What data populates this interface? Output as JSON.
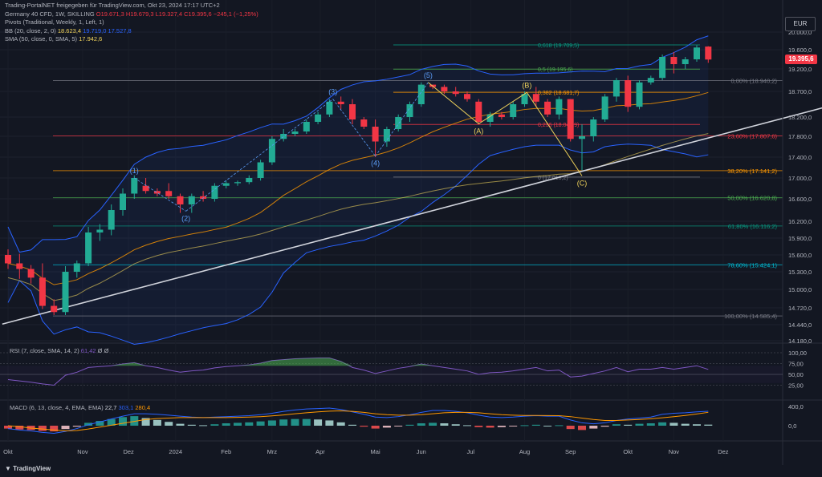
{
  "header": {
    "credit": "Trading-PortalNET freigegeben für TradingView.com, Okt 23, 2024 17:17 UTC+2",
    "symbol_line": "Germany 40 CFD, 1W, SKILLING",
    "ohlc": {
      "o": "O19.671,3",
      "h": "H19.679,3",
      "l": "L19.327,4",
      "c": "C19.395,6",
      "chg": "−245,1 (−1,25%)"
    },
    "pivots": "Pivots (Traditional, Weekly, 1, Left, 1)",
    "bb_label": "BB (20, close, 2, 0)",
    "bb_values": [
      "18.623,4",
      "19.719,0",
      "17.527,8"
    ],
    "sma_label": "SMA (50, close, 0, SMA, 5)",
    "sma_value": "17.942,6"
  },
  "currency": "EUR",
  "last_price": "19.395,6",
  "footer_logo": "TradingView",
  "colors": {
    "up": "#22ab94",
    "down": "#f23645",
    "bb": "#2962ff",
    "sma": "#f0d35b",
    "trend": "#d1d4dc"
  },
  "chart_data": {
    "type": "candlestick",
    "timeframe": "1W",
    "ylim": [
      14180,
      20000
    ],
    "y_ticks": [
      14180,
      14440,
      14720,
      15000,
      15300,
      15600,
      15900,
      16200,
      16600,
      17000,
      17400,
      17800,
      18200,
      18700,
      19200,
      19600,
      20000
    ],
    "y_tick_labels": [
      "14.180,0",
      "14.440,0",
      "14.720,0",
      "15.000,0",
      "15.300,0",
      "15.600,0",
      "15.900,0",
      "16.200,0",
      "16.600,0",
      "17.000,0",
      "17.400,0",
      "17.800,0",
      "18.200,0",
      "18.700,0",
      "19.200,0",
      "19.600,0",
      "20.000,0"
    ],
    "x_labels": [
      "Okt",
      "Nov",
      "Dez",
      "2024",
      "Feb",
      "Mrz",
      "Apr",
      "Mai",
      "Jun",
      "Jul",
      "Aug",
      "Sep",
      "Okt",
      "Nov",
      "Dez"
    ],
    "x_label_week": [
      0,
      6.5,
      10.5,
      14.6,
      19,
      23,
      27.2,
      32,
      36,
      40.3,
      45,
      49,
      54,
      58,
      62.3
    ],
    "candles": [
      [
        15600,
        15700,
        15350,
        15450
      ],
      [
        15450,
        15620,
        15180,
        15350
      ],
      [
        15350,
        15420,
        15100,
        15200
      ],
      [
        15200,
        15450,
        14700,
        14750
      ],
      [
        14750,
        14850,
        14600,
        14650
      ],
      [
        14650,
        15400,
        14600,
        15300
      ],
      [
        15300,
        15500,
        15200,
        15450
      ],
      [
        15450,
        16100,
        15400,
        16000
      ],
      [
        16000,
        16150,
        15850,
        16050
      ],
      [
        16050,
        16500,
        15950,
        16400
      ],
      [
        16400,
        16800,
        16300,
        16700
      ],
      [
        16700,
        17050,
        16600,
        17000
      ],
      [
        16850,
        17000,
        16700,
        16750
      ],
      [
        16750,
        16800,
        16650,
        16700
      ],
      [
        16750,
        16900,
        16600,
        16650
      ],
      [
        16650,
        16700,
        16350,
        16500
      ],
      [
        16500,
        16700,
        16350,
        16650
      ],
      [
        16650,
        16750,
        16550,
        16600
      ],
      [
        16600,
        16900,
        16550,
        16850
      ],
      [
        16850,
        16950,
        16800,
        16900
      ],
      [
        16900,
        16950,
        16850,
        16920
      ],
      [
        16920,
        17050,
        16880,
        17000
      ],
      [
        17000,
        17350,
        16950,
        17300
      ],
      [
        17300,
        17800,
        17250,
        17750
      ],
      [
        17750,
        17950,
        17700,
        17850
      ],
      [
        17850,
        17950,
        17800,
        17900
      ],
      [
        17900,
        18150,
        17850,
        18100
      ],
      [
        18100,
        18300,
        18050,
        18250
      ],
      [
        18250,
        18550,
        18200,
        18500
      ],
      [
        18500,
        18600,
        18350,
        18450
      ],
      [
        18450,
        18550,
        18050,
        18150
      ],
      [
        18150,
        18200,
        17950,
        18000
      ],
      [
        18000,
        18150,
        17400,
        17700
      ],
      [
        17700,
        18000,
        17600,
        17950
      ],
      [
        17950,
        18250,
        17900,
        18200
      ],
      [
        18200,
        18500,
        18100,
        18450
      ],
      [
        18450,
        18900,
        18400,
        18850
      ],
      [
        18850,
        18850,
        18750,
        18800
      ],
      [
        18800,
        18850,
        18650,
        18700
      ],
      [
        18700,
        18800,
        18600,
        18650
      ],
      [
        18650,
        18700,
        18500,
        18550
      ],
      [
        18500,
        18550,
        18050,
        18100
      ],
      [
        18100,
        18300,
        18000,
        18250
      ],
      [
        18250,
        18300,
        18150,
        18200
      ],
      [
        18200,
        18500,
        18150,
        18450
      ],
      [
        18450,
        18700,
        18400,
        18650
      ],
      [
        18650,
        18800,
        18400,
        18500
      ],
      [
        18500,
        18550,
        18200,
        18250
      ],
      [
        18250,
        18600,
        18150,
        18550
      ],
      [
        18550,
        18550,
        17700,
        17750
      ],
      [
        17750,
        18050,
        17150,
        17800
      ],
      [
        17800,
        18200,
        17700,
        18150
      ],
      [
        18150,
        18650,
        18100,
        18600
      ],
      [
        18600,
        19000,
        18500,
        18950
      ],
      [
        18950,
        19050,
        18300,
        18400
      ],
      [
        18400,
        18950,
        18350,
        18900
      ],
      [
        18900,
        19050,
        18850,
        19000
      ],
      [
        19000,
        19500,
        18950,
        19450
      ],
      [
        19450,
        19550,
        19100,
        19300
      ],
      [
        19300,
        19450,
        19200,
        19400
      ],
      [
        19400,
        19700,
        19350,
        19650
      ],
      [
        19671.3,
        19679.3,
        19327.4,
        19395.6
      ]
    ],
    "fib_levels": [
      {
        "label": "0,00% (18.940,2)",
        "value": 18940.2,
        "color": "#787b86"
      },
      {
        "label": "23,60% (17.807,6)",
        "value": 17807.6,
        "color": "#f23645"
      },
      {
        "label": "38,20% (17.141,2)",
        "value": 17141.2,
        "color": "#ff9800"
      },
      {
        "label": "50,00% (16.620,8)",
        "value": 16620.8,
        "color": "#4caf50"
      },
      {
        "label": "61,80% (16.116,2)",
        "value": 16116.2,
        "color": "#089981"
      },
      {
        "label": "78,60% (15.424,1)",
        "value": 15424.1,
        "color": "#00bcd4"
      },
      {
        "label": "100,00% (14.585,4)",
        "value": 14585.4,
        "color": "#787b86"
      }
    ],
    "fib_ext": [
      {
        "label": "0,618 (19.709,5)",
        "value": 19709.5,
        "color": "#089981"
      },
      {
        "label": "0,5 (19.195,6)",
        "value": 19195.6,
        "color": "#4caf50"
      },
      {
        "label": "0,382 (18.681,7)",
        "value": 18681.7,
        "color": "#ff9800"
      },
      {
        "label": "0,236 (18.045,9)",
        "value": 18045.9,
        "color": "#f23645"
      },
      {
        "label": "0 (17.018,2)",
        "value": 17018.2,
        "color": "#787b86"
      }
    ],
    "waves": [
      {
        "label": "(1)",
        "week": 11,
        "value": 17000,
        "color": "#5b9cf6",
        "pos": "above"
      },
      {
        "label": "(2)",
        "week": 15.5,
        "value": 16380,
        "color": "#5b9cf6",
        "pos": "below"
      },
      {
        "label": "(3)",
        "week": 28.3,
        "value": 18550,
        "color": "#5b9cf6",
        "pos": "above"
      },
      {
        "label": "(4)",
        "week": 32,
        "value": 17420,
        "color": "#5b9cf6",
        "pos": "below"
      },
      {
        "label": "(5)",
        "week": 36.6,
        "value": 18900,
        "color": "#5b9cf6",
        "pos": "above"
      },
      {
        "label": "(A)",
        "week": 41,
        "value": 18060,
        "color": "#f0d35b",
        "pos": "below"
      },
      {
        "label": "(B)",
        "week": 45.2,
        "value": 18680,
        "color": "#f0d35b",
        "pos": "above"
      },
      {
        "label": "(C)",
        "week": 50,
        "value": 17040,
        "color": "#f0d35b",
        "pos": "below"
      }
    ],
    "trendline": {
      "from": [
        -0.5,
        14450
      ],
      "to": [
        73,
        18500
      ]
    },
    "rsi": {
      "label": "RSI (7, close, SMA, 14, 2)",
      "value": "61,42",
      "extra": "Ø  Ø",
      "ylim": [
        0,
        100
      ],
      "ticks": [
        25,
        50,
        75,
        100
      ],
      "tick_labels": [
        "25,00",
        "50,00",
        "75,00",
        "100,00"
      ],
      "values": [
        38,
        35,
        32,
        28,
        25,
        48,
        55,
        66,
        68,
        70,
        74,
        77,
        70,
        66,
        60,
        55,
        58,
        60,
        65,
        68,
        70,
        72,
        76,
        82,
        84,
        86,
        87,
        88,
        88,
        80,
        66,
        60,
        52,
        58,
        64,
        68,
        74,
        70,
        66,
        62,
        58,
        50,
        54,
        55,
        58,
        62,
        66,
        58,
        60,
        44,
        46,
        52,
        58,
        66,
        56,
        62,
        62,
        66,
        62,
        66,
        70,
        61.42
      ]
    },
    "macd": {
      "label": "MACD (6, 13, close, 4, EMA, EMA)",
      "values": [
        "22,7",
        "303,1",
        "280,4"
      ],
      "ylim": [
        -250,
        500
      ],
      "ticks": [
        0,
        400
      ],
      "tick_labels": [
        "0,0",
        "400,0"
      ],
      "hist": [
        -60,
        -80,
        -90,
        -110,
        -120,
        -70,
        -20,
        60,
        100,
        140,
        180,
        200,
        160,
        120,
        80,
        40,
        20,
        10,
        30,
        50,
        60,
        70,
        90,
        110,
        130,
        140,
        140,
        130,
        110,
        70,
        20,
        -20,
        -60,
        -40,
        -10,
        20,
        50,
        60,
        50,
        30,
        10,
        -30,
        -40,
        -30,
        -10,
        10,
        20,
        0,
        10,
        -70,
        -90,
        -60,
        -20,
        30,
        20,
        40,
        50,
        70,
        60,
        40,
        30,
        22.7
      ],
      "macd_line": [
        -60,
        -90,
        -110,
        -140,
        -160,
        -120,
        -60,
        20,
        80,
        140,
        200,
        250,
        250,
        240,
        220,
        200,
        180,
        170,
        180,
        190,
        200,
        210,
        230,
        260,
        300,
        330,
        350,
        360,
        370,
        340,
        290,
        240,
        180,
        170,
        190,
        230,
        280,
        320,
        320,
        300,
        270,
        220,
        180,
        170,
        180,
        200,
        210,
        200,
        200,
        120,
        60,
        40,
        60,
        110,
        140,
        160,
        180,
        240,
        260,
        270,
        290,
        303.1
      ],
      "signal_line": [
        0,
        -20,
        -50,
        -70,
        -90,
        -110,
        -100,
        -70,
        -30,
        10,
        50,
        90,
        130,
        150,
        160,
        170,
        170,
        170,
        170,
        170,
        175,
        180,
        190,
        205,
        225,
        250,
        270,
        290,
        305,
        310,
        300,
        280,
        250,
        230,
        220,
        220,
        230,
        250,
        270,
        280,
        280,
        270,
        250,
        230,
        220,
        215,
        215,
        212,
        210,
        190,
        160,
        130,
        110,
        110,
        120,
        130,
        145,
        165,
        190,
        215,
        245,
        280.4
      ]
    }
  }
}
